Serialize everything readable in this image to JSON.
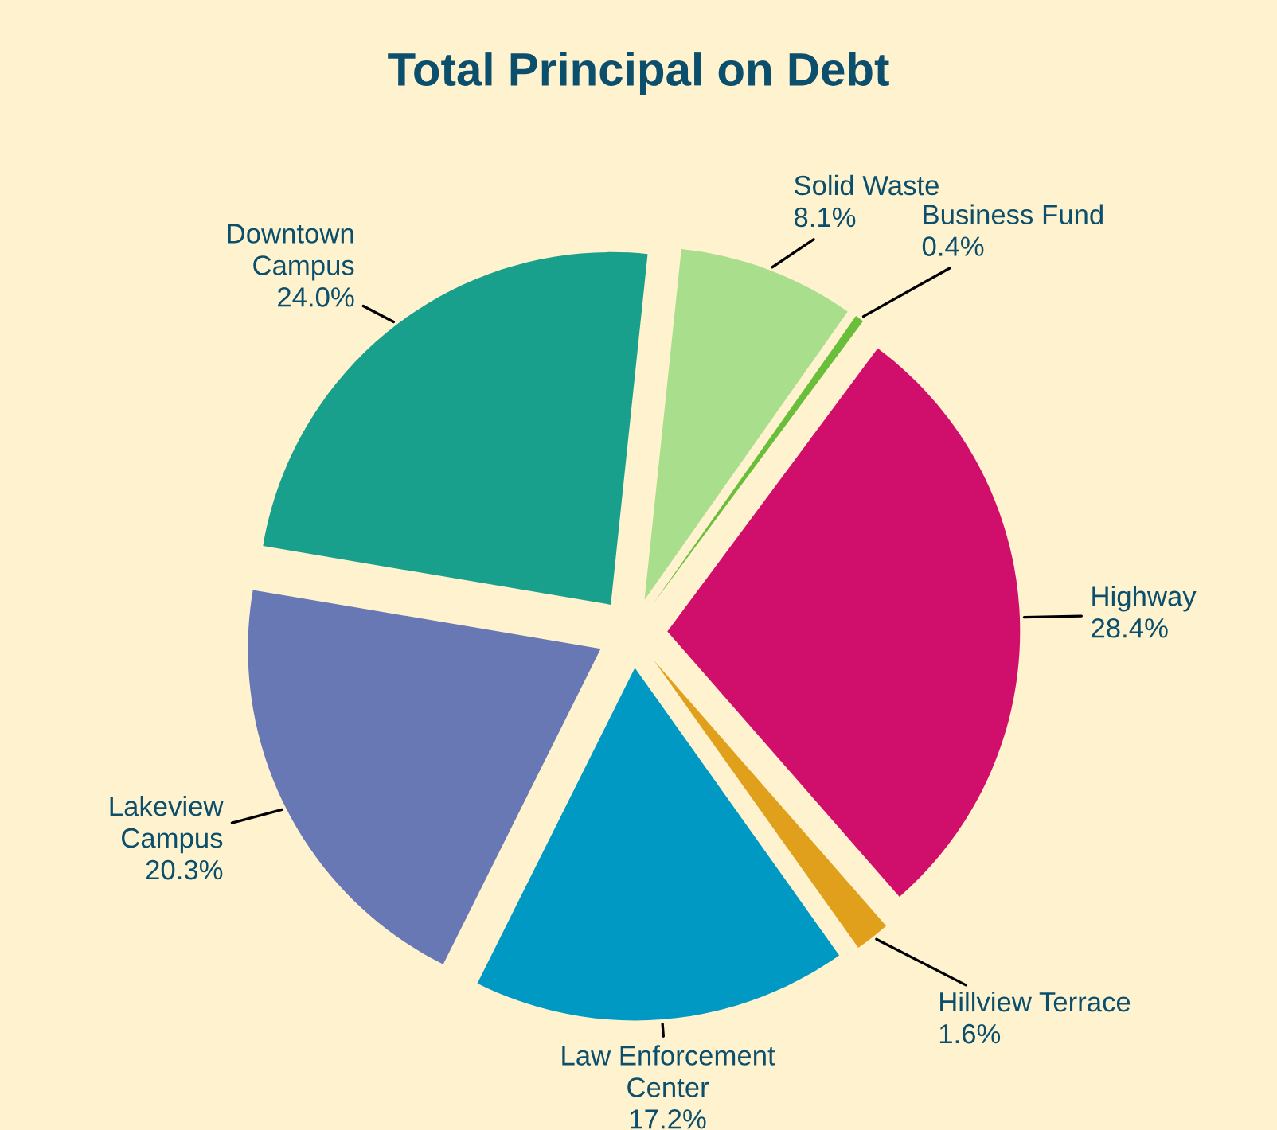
{
  "chart_data": {
    "type": "pie",
    "title": "Total Principal on Debt",
    "categories": [
      "Solid Waste",
      "Business Fund",
      "Highway",
      "Hillview Terrace",
      "Law Enforcement\nCenter",
      "Lakeview\nCampus",
      "Downtown\nCampus"
    ],
    "values": [
      8.1,
      0.4,
      28.4,
      1.6,
      17.2,
      20.3,
      24.0
    ],
    "colors": [
      "#a8de8c",
      "#6abf3a",
      "#cf0f6b",
      "#e0a01c",
      "#0099c4",
      "#6878b4",
      "#18a08c"
    ],
    "value_labels": [
      "8.1%",
      "0.4%",
      "28.4%",
      "1.6%",
      "17.2%",
      "20.3%",
      "24.0%"
    ],
    "legend": false
  }
}
